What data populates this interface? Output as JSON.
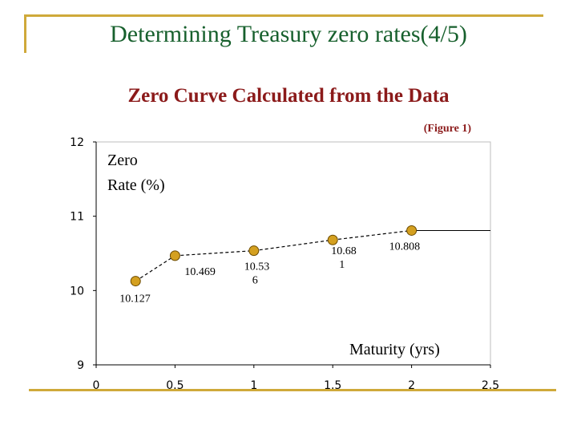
{
  "slide": {
    "title": "Determining Treasury zero rates(4/5)"
  },
  "colors": {
    "frame": "#cfa93a",
    "title": "#17602d",
    "chart_title": "#8b1a1a",
    "marker_fill": "#d4a020",
    "marker_stroke": "#6b4a00"
  },
  "chart_data": {
    "type": "line",
    "title": "Zero Curve Calculated from the Data",
    "figure_note": "(Figure 1)",
    "ylabel_lines": [
      "Zero",
      "Rate (%)"
    ],
    "xlabel": "Maturity (yrs)",
    "xlim": [
      0,
      2.5
    ],
    "ylim": [
      9,
      12
    ],
    "x_ticks": [
      "0",
      "0.5",
      "1",
      "1.5",
      "2",
      "2.5"
    ],
    "y_ticks": [
      "9",
      "10",
      "11",
      "12"
    ],
    "grid": false,
    "x": [
      0.25,
      0.5,
      1.0,
      1.5,
      2.0,
      2.5
    ],
    "y": [
      10.127,
      10.469,
      10.536,
      10.681,
      10.808,
      10.808
    ],
    "markers": [
      true,
      true,
      true,
      true,
      true,
      false
    ],
    "data_labels": [
      {
        "lines": [
          "10.127"
        ]
      },
      {
        "lines": [
          "10.469"
        ]
      },
      {
        "lines": [
          "10.53",
          "6"
        ]
      },
      {
        "lines": [
          "10.68",
          "1"
        ]
      },
      {
        "lines": [
          "10.808"
        ]
      }
    ]
  }
}
